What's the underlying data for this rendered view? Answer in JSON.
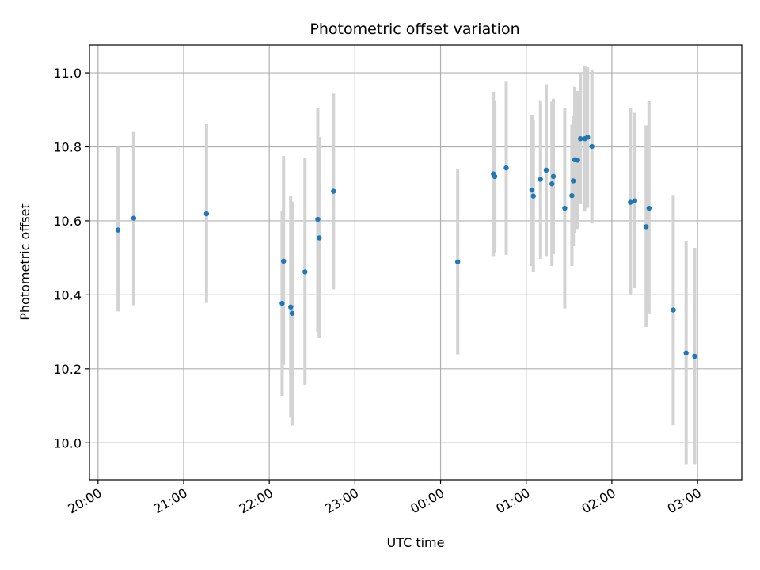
{
  "chart_data": {
    "type": "scatter",
    "title": "Photometric offset variation",
    "xlabel": "UTC time",
    "ylabel": "Photometric offset",
    "x_axis_type": "time",
    "xlim": [
      "19:54",
      "03:31"
    ],
    "ylim": [
      9.9,
      11.075
    ],
    "x_ticks": [
      "20:00",
      "21:00",
      "22:00",
      "23:00",
      "00:00",
      "01:00",
      "02:00",
      "03:00"
    ],
    "y_ticks": [
      10.0,
      10.2,
      10.4,
      10.6,
      10.8,
      11.0
    ],
    "y_tick_labels": [
      "10.0",
      "10.2",
      "10.4",
      "10.6",
      "10.8",
      "11.0"
    ],
    "grid": true,
    "marker_color": "#1f77b4",
    "errorbar_color": "#d3d3d3",
    "points": [
      {
        "t": "20:14",
        "y": 10.575,
        "lo": 10.355,
        "hi": 10.8
      },
      {
        "t": "20:25",
        "y": 10.607,
        "lo": 10.372,
        "hi": 10.84
      },
      {
        "t": "21:16",
        "y": 10.619,
        "lo": 10.378,
        "hi": 10.862
      },
      {
        "t": "22:09",
        "y": 10.377,
        "lo": 10.127,
        "hi": 10.628
      },
      {
        "t": "22:10",
        "y": 10.491,
        "lo": 10.211,
        "hi": 10.775
      },
      {
        "t": "22:15",
        "y": 10.367,
        "lo": 10.068,
        "hi": 10.666
      },
      {
        "t": "22:16",
        "y": 10.35,
        "lo": 10.047,
        "hi": 10.652
      },
      {
        "t": "22:25",
        "y": 10.462,
        "lo": 10.157,
        "hi": 10.769
      },
      {
        "t": "22:34",
        "y": 10.604,
        "lo": 10.3,
        "hi": 10.906
      },
      {
        "t": "22:35",
        "y": 10.554,
        "lo": 10.283,
        "hi": 10.827
      },
      {
        "t": "22:45",
        "y": 10.68,
        "lo": 10.415,
        "hi": 10.944
      },
      {
        "t": "00:12",
        "y": 10.489,
        "lo": 10.239,
        "hi": 10.74
      },
      {
        "t": "00:37",
        "y": 10.727,
        "lo": 10.505,
        "hi": 10.949
      },
      {
        "t": "00:38",
        "y": 10.72,
        "lo": 10.515,
        "hi": 10.926
      },
      {
        "t": "00:46",
        "y": 10.743,
        "lo": 10.508,
        "hi": 10.978
      },
      {
        "t": "01:04",
        "y": 10.683,
        "lo": 10.478,
        "hi": 10.887
      },
      {
        "t": "01:05",
        "y": 10.667,
        "lo": 10.463,
        "hi": 10.872
      },
      {
        "t": "01:10",
        "y": 10.712,
        "lo": 10.497,
        "hi": 10.926
      },
      {
        "t": "01:14",
        "y": 10.737,
        "lo": 10.505,
        "hi": 10.969
      },
      {
        "t": "01:18",
        "y": 10.7,
        "lo": 10.478,
        "hi": 10.922
      },
      {
        "t": "01:19",
        "y": 10.72,
        "lo": 10.51,
        "hi": 10.93
      },
      {
        "t": "01:27",
        "y": 10.634,
        "lo": 10.363,
        "hi": 10.905
      },
      {
        "t": "01:32",
        "y": 10.668,
        "lo": 10.478,
        "hi": 10.86
      },
      {
        "t": "01:33",
        "y": 10.708,
        "lo": 10.531,
        "hi": 10.885
      },
      {
        "t": "01:34",
        "y": 10.765,
        "lo": 10.568,
        "hi": 10.962
      },
      {
        "t": "01:36",
        "y": 10.764,
        "lo": 10.578,
        "hi": 10.951
      },
      {
        "t": "01:38",
        "y": 10.822,
        "lo": 10.645,
        "hi": 10.998
      },
      {
        "t": "01:41",
        "y": 10.822,
        "lo": 10.625,
        "hi": 11.02
      },
      {
        "t": "01:43",
        "y": 10.826,
        "lo": 10.635,
        "hi": 11.016
      },
      {
        "t": "01:46",
        "y": 10.801,
        "lo": 10.593,
        "hi": 11.009
      },
      {
        "t": "02:13",
        "y": 10.65,
        "lo": 10.4,
        "hi": 10.905
      },
      {
        "t": "02:16",
        "y": 10.654,
        "lo": 10.418,
        "hi": 10.892
      },
      {
        "t": "02:24",
        "y": 10.584,
        "lo": 10.313,
        "hi": 10.858
      },
      {
        "t": "02:26",
        "y": 10.634,
        "lo": 10.35,
        "hi": 10.925
      },
      {
        "t": "02:43",
        "y": 10.359,
        "lo": 10.047,
        "hi": 10.67
      },
      {
        "t": "02:52",
        "y": 10.243,
        "lo": 9.942,
        "hi": 10.545
      },
      {
        "t": "02:58",
        "y": 10.234,
        "lo": 9.942,
        "hi": 10.527
      }
    ]
  }
}
